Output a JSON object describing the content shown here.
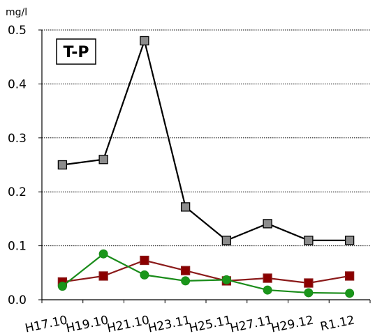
{
  "chart_data": {
    "type": "line",
    "title": "T-P",
    "ylabel": "mg/l",
    "xlabel": "",
    "ylim": [
      0,
      0.5
    ],
    "yticks": [
      "0.0",
      "0.1",
      "0.2",
      "0.3",
      "0.4",
      "0.5"
    ],
    "grid": true,
    "categories": [
      "H17.10",
      "H19.10",
      "H21.10",
      "H23.11",
      "H25.11",
      "H27.11",
      "H29.12",
      "R1.12"
    ],
    "series": [
      {
        "marker": "square",
        "color": "#000000",
        "marker_fill": "#8c8c8c",
        "values": [
          0.25,
          0.26,
          0.48,
          0.172,
          0.11,
          0.141,
          0.11,
          0.11
        ]
      },
      {
        "marker": "square",
        "color": "#8b1a1a",
        "marker_fill": "#8b0000",
        "values": [
          0.033,
          0.044,
          0.073,
          0.054,
          0.035,
          0.04,
          0.031,
          0.044
        ]
      },
      {
        "marker": "circle",
        "color": "#1a8c1a",
        "marker_fill": "#1a961a",
        "values": [
          0.025,
          0.085,
          0.046,
          0.035,
          0.037,
          0.018,
          0.013,
          0.012
        ]
      }
    ]
  }
}
